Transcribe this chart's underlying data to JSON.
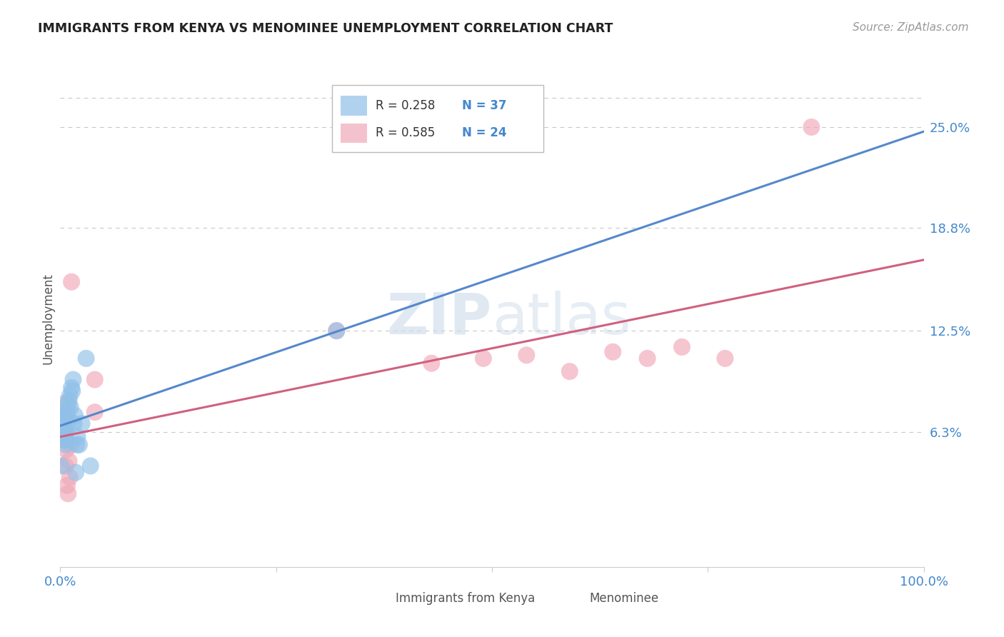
{
  "title": "IMMIGRANTS FROM KENYA VS MENOMINEE UNEMPLOYMENT CORRELATION CHART",
  "source": "Source: ZipAtlas.com",
  "ylabel": "Unemployment",
  "xlim": [
    0,
    1.0
  ],
  "ylim": [
    -0.02,
    0.285
  ],
  "yticks": [
    0.063,
    0.125,
    0.188,
    0.25
  ],
  "ytick_labels": [
    "6.3%",
    "12.5%",
    "18.8%",
    "25.0%"
  ],
  "xticks": [
    0.0,
    0.25,
    0.5,
    0.75,
    1.0
  ],
  "xtick_labels": [
    "0.0%",
    "",
    "",
    "",
    "100.0%"
  ],
  "background_color": "#ffffff",
  "grid_color": "#c8c8c8",
  "watermark_zip": "ZIP",
  "watermark_atlas": "atlas",
  "legend_r1": "R = 0.258",
  "legend_n1": "N = 37",
  "legend_r2": "R = 0.585",
  "legend_n2": "N = 24",
  "blue_color": "#90c0e8",
  "pink_color": "#f0a8b8",
  "line_blue_color": "#5588cc",
  "line_pink_color": "#d06080",
  "label_color": "#4488cc",
  "title_color": "#222222",
  "source_color": "#999999",
  "kenya_x": [
    0.001,
    0.002,
    0.002,
    0.003,
    0.003,
    0.003,
    0.004,
    0.004,
    0.004,
    0.005,
    0.005,
    0.005,
    0.006,
    0.006,
    0.007,
    0.007,
    0.008,
    0.008,
    0.009,
    0.009,
    0.01,
    0.011,
    0.012,
    0.013,
    0.014,
    0.015,
    0.016,
    0.017,
    0.018,
    0.019,
    0.02,
    0.022,
    0.025,
    0.03,
    0.035,
    0.32,
    0.001
  ],
  "kenya_y": [
    0.068,
    0.072,
    0.065,
    0.075,
    0.07,
    0.062,
    0.068,
    0.063,
    0.073,
    0.06,
    0.058,
    0.065,
    0.055,
    0.07,
    0.063,
    0.058,
    0.075,
    0.068,
    0.08,
    0.072,
    0.082,
    0.085,
    0.078,
    0.09,
    0.088,
    0.095,
    0.068,
    0.073,
    0.038,
    0.055,
    0.06,
    0.055,
    0.068,
    0.108,
    0.042,
    0.125,
    0.042
  ],
  "menominee_x": [
    0.002,
    0.003,
    0.004,
    0.005,
    0.006,
    0.007,
    0.008,
    0.009,
    0.01,
    0.011,
    0.012,
    0.013,
    0.04,
    0.04,
    0.32,
    0.43,
    0.49,
    0.54,
    0.59,
    0.64,
    0.68,
    0.72,
    0.77,
    0.87
  ],
  "menominee_y": [
    0.065,
    0.08,
    0.06,
    0.058,
    0.042,
    0.052,
    0.03,
    0.025,
    0.045,
    0.035,
    0.055,
    0.155,
    0.095,
    0.075,
    0.125,
    0.105,
    0.108,
    0.11,
    0.1,
    0.112,
    0.108,
    0.115,
    0.108,
    0.25
  ]
}
